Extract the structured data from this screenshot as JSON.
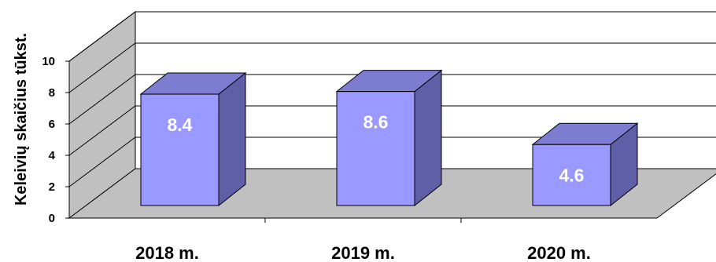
{
  "chart_data": {
    "type": "bar",
    "categories": [
      "2018 m.",
      "2019 m.",
      "2020 m."
    ],
    "values": [
      8.4,
      8.6,
      4.6
    ],
    "data_labels": [
      "8.4",
      "8.6",
      "4.6"
    ],
    "ylabel": "Keleivių skaičius tūkst.",
    "yticks": [
      "0",
      "2",
      "4",
      "6",
      "8",
      "10"
    ],
    "ylim": [
      0,
      10
    ],
    "grid": true,
    "three_d": true,
    "colors": {
      "bar_front": "#9999FF",
      "bar_side": "#5F5FA8",
      "bar_top": "#7C7CD0",
      "floor": "#C0C0C0",
      "back_wall": "#FFFFFF",
      "side_wall": "#C0C0C0",
      "grid": "#000000"
    }
  }
}
